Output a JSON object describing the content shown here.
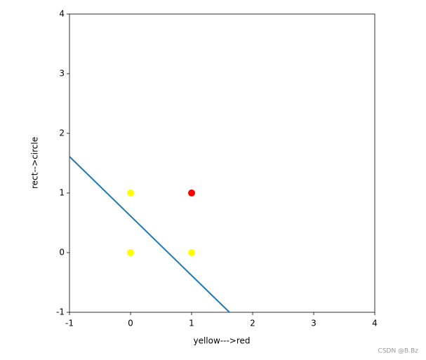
{
  "chart_data": {
    "type": "scatter",
    "xlabel": "yellow--->red",
    "ylabel": "rect-->circle",
    "xlim": [
      -1,
      4
    ],
    "ylim": [
      -1,
      4
    ],
    "xticks": [
      -1,
      0,
      1,
      2,
      3,
      4
    ],
    "yticks": [
      -1,
      0,
      1,
      2,
      3,
      4
    ],
    "grid": false,
    "series": [
      {
        "type": "scatter",
        "color": "yellow",
        "x": [
          0,
          0,
          1
        ],
        "values": [
          0,
          1,
          0
        ]
      },
      {
        "type": "scatter",
        "color": "red",
        "x": [
          1
        ],
        "values": [
          1
        ]
      },
      {
        "type": "line",
        "color": "#1f77b4",
        "x": [
          -1,
          1.62
        ],
        "values": [
          1.61,
          -1
        ]
      }
    ],
    "watermark": "CSDN @B.Bz"
  }
}
